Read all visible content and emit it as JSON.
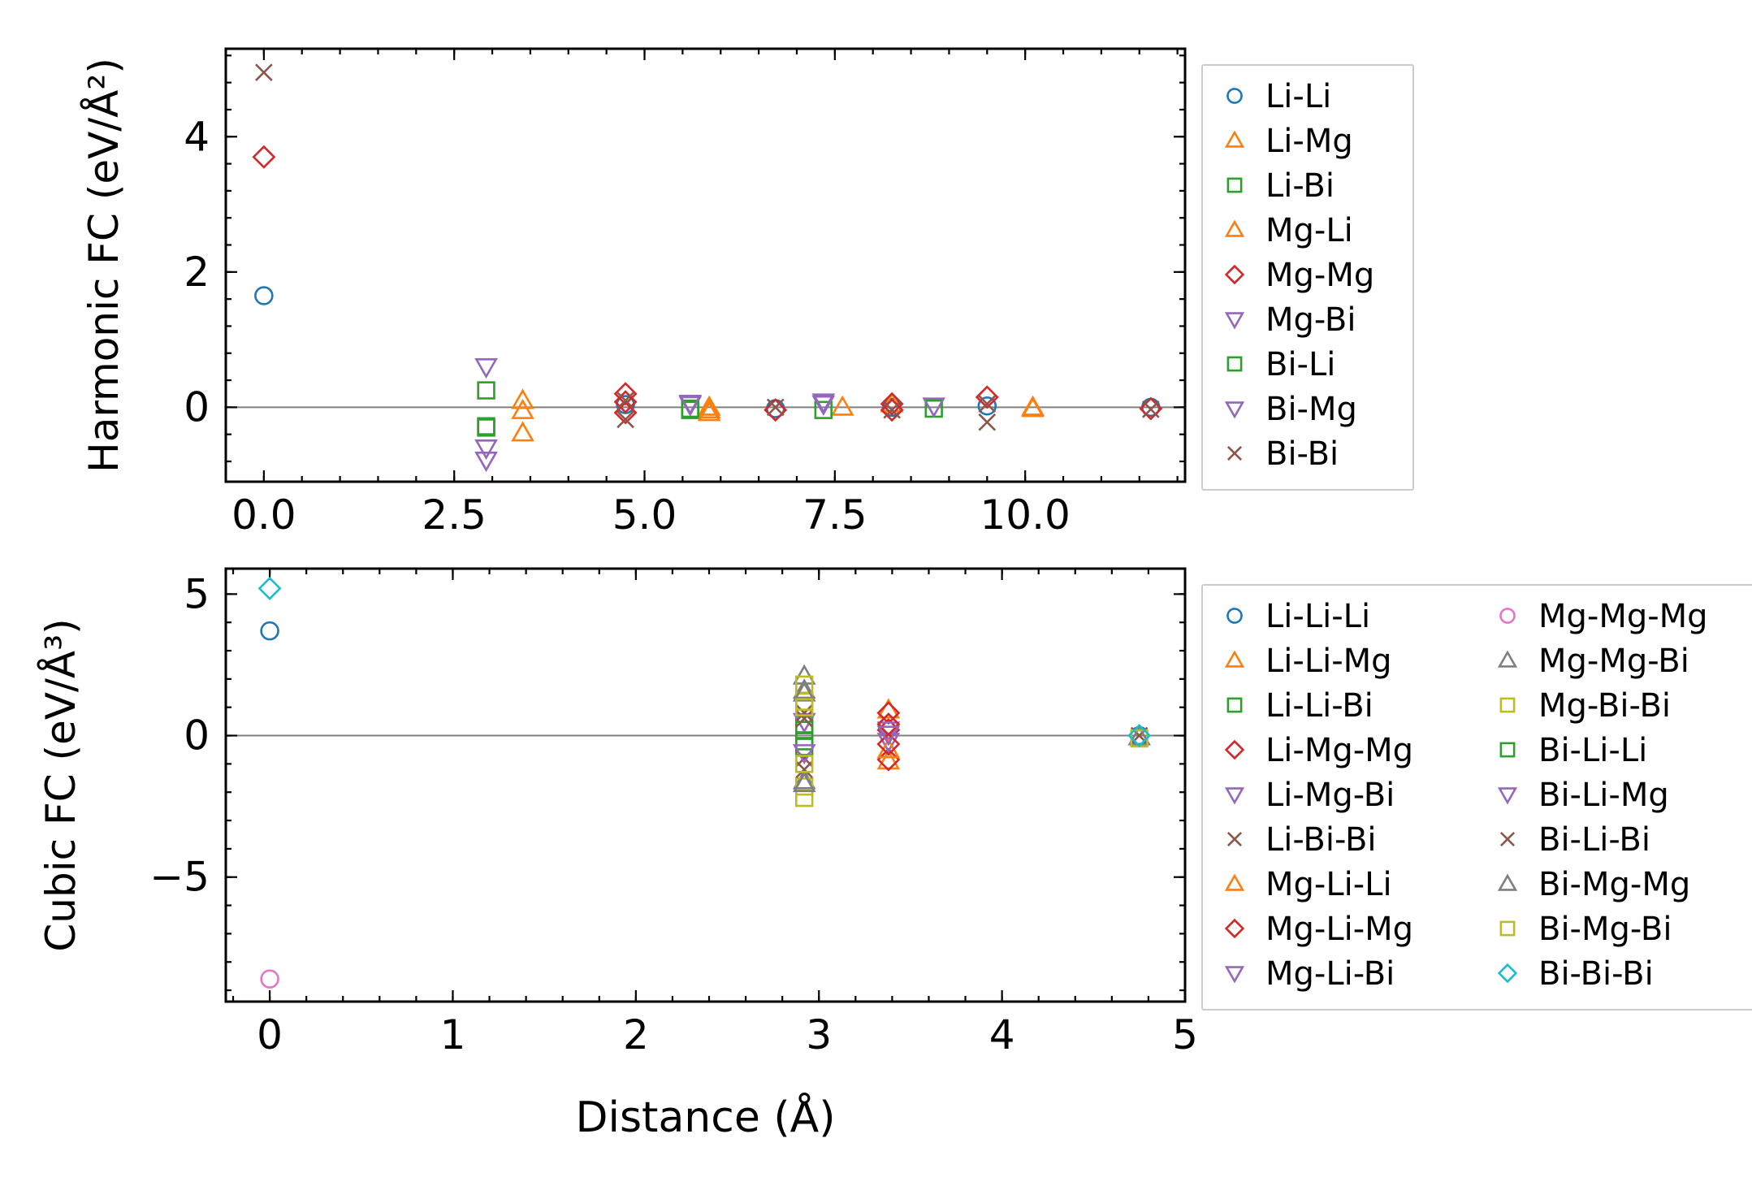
{
  "chart_data": [
    {
      "type": "scatter",
      "ylabel": "Harmonic FC (eV/Å²)",
      "xlabel": "",
      "xlim": [
        -0.5,
        12.1
      ],
      "ylim": [
        -1.1,
        5.3
      ],
      "xticks": [
        0.0,
        2.5,
        5.0,
        7.5,
        10.0
      ],
      "xtick_labels": [
        "0.0",
        "2.5",
        "5.0",
        "7.5",
        "10.0"
      ],
      "yticks": [
        0,
        2,
        4
      ],
      "ytick_labels": [
        "0",
        "2",
        "4"
      ],
      "zero_line": true,
      "legend_position": "outside-right",
      "series": [
        {
          "name": "Li-Li",
          "marker": "circle",
          "color": "#1f77b4",
          "points": [
            [
              0.0,
              1.65
            ],
            [
              4.75,
              0.04
            ],
            [
              6.72,
              -0.02
            ],
            [
              8.25,
              0.0
            ],
            [
              9.5,
              0.02
            ],
            [
              11.65,
              0.0
            ]
          ]
        },
        {
          "name": "Li-Mg",
          "marker": "triangle-up",
          "color": "#ff7f0e",
          "points": [
            [
              3.4,
              0.1
            ],
            [
              3.4,
              -0.38
            ],
            [
              5.85,
              0.0
            ],
            [
              5.85,
              -0.08
            ],
            [
              7.6,
              0.0
            ],
            [
              8.25,
              0.05
            ],
            [
              10.1,
              -0.02
            ]
          ]
        },
        {
          "name": "Li-Bi",
          "marker": "square",
          "color": "#2ca02c",
          "points": [
            [
              2.92,
              0.25
            ],
            [
              2.92,
              -0.3
            ],
            [
              5.6,
              -0.04
            ],
            [
              7.35,
              -0.04
            ],
            [
              8.8,
              -0.02
            ]
          ]
        },
        {
          "name": "Mg-Li",
          "marker": "triangle-up",
          "color": "#ff7f0e",
          "points": [
            [
              3.4,
              -0.05
            ],
            [
              5.85,
              -0.04
            ],
            [
              10.1,
              0.0
            ]
          ]
        },
        {
          "name": "Mg-Mg",
          "marker": "diamond",
          "color": "#d62728",
          "points": [
            [
              0.0,
              3.7
            ],
            [
              4.75,
              0.2
            ],
            [
              4.75,
              0.08
            ],
            [
              4.75,
              -0.08
            ],
            [
              6.72,
              -0.04
            ],
            [
              8.25,
              0.05
            ],
            [
              8.25,
              -0.04
            ],
            [
              9.5,
              0.15
            ],
            [
              11.65,
              -0.02
            ]
          ]
        },
        {
          "name": "Mg-Bi",
          "marker": "triangle-down",
          "color": "#9467bd",
          "points": [
            [
              2.92,
              0.6
            ],
            [
              2.92,
              -0.6
            ],
            [
              5.6,
              0.04
            ],
            [
              7.35,
              0.05
            ],
            [
              8.8,
              0.02
            ]
          ]
        },
        {
          "name": "Bi-Li",
          "marker": "square",
          "color": "#2ca02c",
          "points": [
            [
              2.92,
              -0.28
            ],
            [
              5.6,
              -0.02
            ]
          ]
        },
        {
          "name": "Bi-Mg",
          "marker": "triangle-down",
          "color": "#9467bd",
          "points": [
            [
              2.92,
              -0.78
            ],
            [
              5.6,
              0.06
            ],
            [
              7.35,
              0.08
            ]
          ]
        },
        {
          "name": "Bi-Bi",
          "marker": "x",
          "color": "#8c564b",
          "points": [
            [
              0.0,
              4.95
            ],
            [
              4.75,
              -0.18
            ],
            [
              4.75,
              0.1
            ],
            [
              6.72,
              0.0
            ],
            [
              8.25,
              -0.04
            ],
            [
              9.5,
              -0.22
            ],
            [
              9.5,
              0.05
            ],
            [
              11.65,
              -0.03
            ]
          ]
        }
      ]
    },
    {
      "type": "scatter",
      "ylabel": "Cubic FC (eV/Å³)",
      "xlabel": "Distance (Å)",
      "xlim": [
        -0.24,
        5.0
      ],
      "ylim": [
        -9.4,
        5.9
      ],
      "xticks": [
        0,
        1,
        2,
        3,
        4,
        5
      ],
      "xtick_labels": [
        "0",
        "1",
        "2",
        "3",
        "4",
        "5"
      ],
      "yticks": [
        -5,
        0,
        5
      ],
      "ytick_labels": [
        "−5",
        "0",
        "5"
      ],
      "zero_line": true,
      "legend_position": "outside-right",
      "series": [
        {
          "name": "Li-Li-Li",
          "marker": "circle",
          "color": "#1f77b4",
          "points": [
            [
              0.0,
              3.7
            ],
            [
              4.75,
              0.0
            ]
          ]
        },
        {
          "name": "Li-Li-Mg",
          "marker": "triangle-up",
          "color": "#ff7f0e",
          "points": [
            [
              3.38,
              0.9
            ],
            [
              3.38,
              -0.9
            ]
          ]
        },
        {
          "name": "Li-Li-Bi",
          "marker": "square",
          "color": "#2ca02c",
          "points": [
            [
              2.92,
              0.4
            ],
            [
              2.92,
              -0.4
            ]
          ]
        },
        {
          "name": "Li-Mg-Mg",
          "marker": "diamond",
          "color": "#d62728",
          "points": [
            [
              3.38,
              0.8
            ],
            [
              3.38,
              -0.85
            ],
            [
              3.38,
              0.2
            ]
          ]
        },
        {
          "name": "Li-Mg-Bi",
          "marker": "triangle-down",
          "color": "#9467bd",
          "points": [
            [
              3.38,
              0.2
            ],
            [
              3.38,
              -0.2
            ],
            [
              2.92,
              0.5
            ]
          ]
        },
        {
          "name": "Li-Bi-Bi",
          "marker": "x",
          "color": "#8c564b",
          "points": [
            [
              2.92,
              0.8
            ],
            [
              2.92,
              -0.8
            ],
            [
              4.75,
              0.0
            ]
          ]
        },
        {
          "name": "Mg-Li-Li",
          "marker": "triangle-up",
          "color": "#ff7f0e",
          "points": [
            [
              3.38,
              -0.5
            ]
          ]
        },
        {
          "name": "Mg-Li-Mg",
          "marker": "diamond",
          "color": "#d62728",
          "points": [
            [
              3.38,
              -0.3
            ],
            [
              3.38,
              0.4
            ]
          ]
        },
        {
          "name": "Mg-Li-Bi",
          "marker": "triangle-down",
          "color": "#9467bd",
          "points": [
            [
              3.38,
              0.05
            ]
          ]
        },
        {
          "name": "Mg-Mg-Mg",
          "marker": "circle",
          "color": "#e377c2",
          "points": [
            [
              0.0,
              -8.6
            ]
          ]
        },
        {
          "name": "Mg-Mg-Bi",
          "marker": "triangle-up",
          "color": "#7f7f7f",
          "points": [
            [
              2.92,
              2.1
            ],
            [
              2.92,
              1.6
            ],
            [
              2.92,
              -1.6
            ]
          ]
        },
        {
          "name": "Mg-Bi-Bi",
          "marker": "square",
          "color": "#bcbd22",
          "points": [
            [
              2.92,
              1.8
            ],
            [
              2.92,
              1.2
            ],
            [
              2.92,
              -1.8
            ],
            [
              2.92,
              -2.2
            ]
          ]
        },
        {
          "name": "Bi-Li-Li",
          "marker": "square",
          "color": "#2ca02c",
          "points": [
            [
              2.92,
              0.2
            ],
            [
              2.92,
              -0.2
            ]
          ]
        },
        {
          "name": "Bi-Li-Mg",
          "marker": "triangle-down",
          "color": "#9467bd",
          "points": [
            [
              2.92,
              -0.6
            ]
          ]
        },
        {
          "name": "Bi-Li-Bi",
          "marker": "x",
          "color": "#8c564b",
          "points": [
            [
              2.92,
              0.6
            ],
            [
              2.92,
              -1.2
            ]
          ]
        },
        {
          "name": "Bi-Mg-Mg",
          "marker": "triangle-up",
          "color": "#7f7f7f",
          "points": [
            [
              2.92,
              -1.7
            ],
            [
              2.92,
              1.5
            ],
            [
              4.75,
              -0.05
            ]
          ]
        },
        {
          "name": "Bi-Mg-Bi",
          "marker": "square",
          "color": "#bcbd22",
          "points": [
            [
              2.92,
              1.0
            ],
            [
              2.92,
              -1.0
            ],
            [
              4.75,
              -0.1
            ]
          ]
        },
        {
          "name": "Bi-Bi-Bi",
          "marker": "diamond",
          "color": "#17becf",
          "points": [
            [
              0.0,
              5.2
            ],
            [
              4.75,
              0.0
            ]
          ]
        }
      ]
    }
  ]
}
